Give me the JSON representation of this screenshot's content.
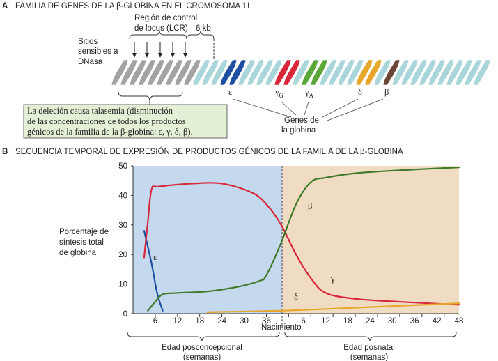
{
  "panel_a": {
    "letter": "A",
    "title": "FAMILIA DE GENES DE LA β-GLOBINA EN EL CROMOSOMA 11",
    "lcr_label_1": "Región de control",
    "lcr_label_2": "de locus (LCR)",
    "distance_label": "6 kb",
    "dnase_1": "Sitios",
    "dnase_2": "sensibles a",
    "dnase_3": "DNasa",
    "deletion_1": "La deleción causa talasemia (disminución",
    "deletion_2": "de las concentraciones de todos los productos",
    "deletion_3": "génicos de la familia de la β-globina: ε, γ, δ, β).",
    "genes_label_1": "Genes de",
    "genes_label_2": "la globina",
    "genes": [
      {
        "symbol": "ε",
        "sub": "",
        "color": "#1f4fa3"
      },
      {
        "symbol": "γ",
        "sub": "G",
        "color": "#d8263a"
      },
      {
        "symbol": "γ",
        "sub": "A",
        "color": "#5aa83a"
      },
      {
        "symbol": "δ",
        "sub": "",
        "color": "#e8a62a"
      },
      {
        "symbol": "β",
        "sub": "",
        "color": "#6b4638"
      }
    ],
    "colors": {
      "lcr": "#a3a3a3",
      "strand": "#a9d6d9",
      "box": "#e3f0d6"
    }
  },
  "panel_b": {
    "letter": "B",
    "title": "SECUENCIA TEMPORAL DE EXPRESIÓN DE PRODUCTOS GÉNICOS DE LA FAMILIA DE LA β-GLOBINA",
    "ylabel_1": "Porcentaje de",
    "ylabel_2": "síntesis total",
    "ylabel_3": "de globina",
    "birth_label": "Nacimiento",
    "prenatal_1": "Edad posconcepcional",
    "prenatal_2": "(semanas)",
    "postnatal_1": "Edad posnatal",
    "postnatal_2": "(semanas)"
  },
  "chart_data": {
    "type": "line",
    "prenatal_ticks": [
      "6",
      "12",
      "18",
      "24",
      "30",
      "36"
    ],
    "postnatal_ticks": [
      "6",
      "12",
      "18",
      "24",
      "30",
      "36",
      "42",
      "48"
    ],
    "y_ticks": [
      "0",
      "10",
      "20",
      "30",
      "40",
      "50"
    ],
    "ylim": [
      0,
      50
    ],
    "grid": true,
    "colors": {
      "prenatal_bg": "#c4d8ee",
      "postnatal_bg": "#efdcc2"
    },
    "x_note": "x = weeks post-conception (birth at 40); postnatal week n = 40 + n",
    "series": [
      {
        "name": "ε",
        "color": "#1f4fa3",
        "points": [
          [
            3,
            28
          ],
          [
            5,
            17
          ],
          [
            6.5,
            7
          ],
          [
            8,
            1
          ]
        ]
      },
      {
        "name": "γ",
        "color": "#d8263a",
        "points": [
          [
            3,
            19
          ],
          [
            4,
            31
          ],
          [
            5,
            42
          ],
          [
            7,
            43
          ],
          [
            16,
            44
          ],
          [
            24,
            44
          ],
          [
            32,
            41
          ],
          [
            36,
            37
          ],
          [
            40,
            30
          ],
          [
            44,
            20
          ],
          [
            48,
            12
          ],
          [
            52,
            7
          ],
          [
            60,
            5
          ],
          [
            72,
            4
          ],
          [
            88,
            3
          ]
        ]
      },
      {
        "name": "β",
        "color": "#3f7a2a",
        "points": [
          [
            4,
            1
          ],
          [
            6,
            4
          ],
          [
            8,
            6.5
          ],
          [
            12,
            7
          ],
          [
            20,
            7.5
          ],
          [
            28,
            9
          ],
          [
            34,
            11
          ],
          [
            36,
            13
          ],
          [
            40,
            24
          ],
          [
            44,
            37
          ],
          [
            48,
            44.5
          ],
          [
            52,
            46
          ],
          [
            60,
            47.5
          ],
          [
            72,
            48.5
          ],
          [
            88,
            49.5
          ]
        ]
      },
      {
        "name": "δ",
        "color": "#e8a62a",
        "points": [
          [
            20,
            0.5
          ],
          [
            40,
            1
          ],
          [
            60,
            2
          ],
          [
            88,
            3.5
          ]
        ]
      }
    ]
  }
}
